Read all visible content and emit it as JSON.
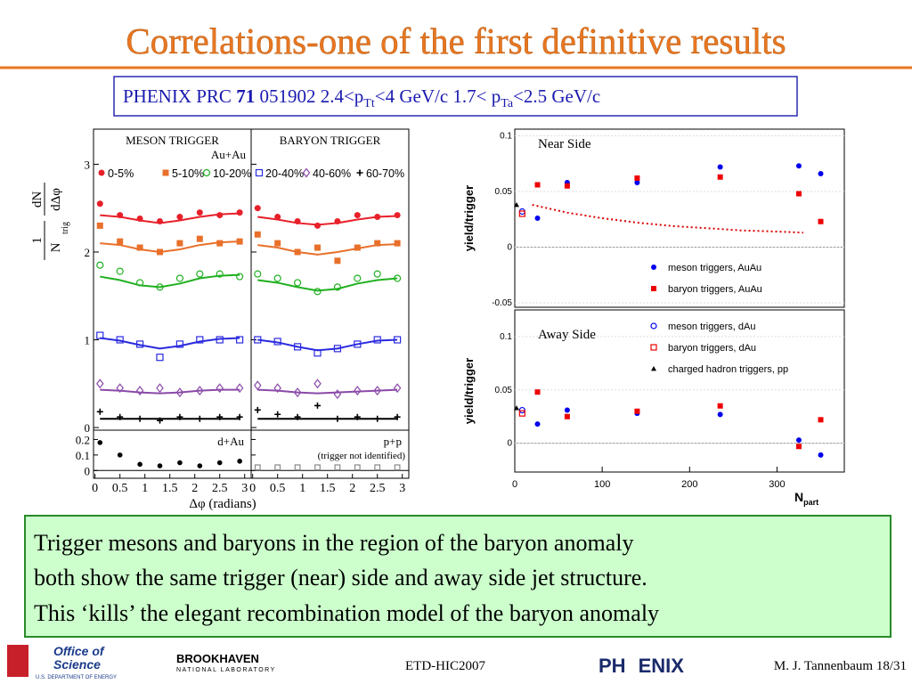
{
  "slide": {
    "title": "Correlations-one of the first definitive results",
    "citation": [
      "PHENIX PRC ",
      "71",
      " 051902  2.4<p",
      "Tt",
      "<4 GeV/c 1.7< p",
      "Ta",
      "<2.5 GeV/c"
    ],
    "body": [
      "Trigger mesons and baryons in the region of the baryon anomaly",
      "both show the same trigger (near) side and away side jet structure.",
      "This ‘kills’ the elegant recombination model of the baryon anomaly"
    ],
    "footer": {
      "logo1": [
        "Office of",
        "Science",
        "U.S. DEPARTMENT OF ENERGY"
      ],
      "logo2": [
        "BROOKHAVEN",
        "NATIONAL LABORATORY"
      ],
      "logo3": [
        "PH",
        "ENIX"
      ],
      "conference": "ETD-HIC2007",
      "author": "M. J. Tannenbaum  18/31"
    }
  },
  "chart_data": [
    {
      "type": "scatter",
      "y_label": [
        "1",
        "N",
        "trig",
        "dN",
        "dΔφ"
      ],
      "system": "Au+Au",
      "x": [
        0.1,
        0.5,
        0.9,
        1.3,
        1.7,
        2.1,
        2.5,
        2.9
      ],
      "xlim": [
        -0.03,
        3.13
      ],
      "ylim": [
        -0.03,
        3.4
      ],
      "yticks": [
        0,
        1,
        2,
        3
      ],
      "panels": [
        {
          "title": "MESON TRIGGER",
          "series": [
            {
              "name": "0-5%",
              "color": "#e8202a",
              "marker": "filled-circle",
              "values": [
                2.55,
                2.42,
                2.38,
                2.35,
                2.4,
                2.45,
                2.42,
                2.45
              ],
              "fit": [
                2.42,
                2.4,
                2.36,
                2.33,
                2.36,
                2.4,
                2.43,
                2.44
              ]
            },
            {
              "name": "5-10%",
              "color": "#e8702a",
              "marker": "filled-square",
              "values": [
                2.3,
                2.12,
                2.05,
                2.0,
                2.1,
                2.15,
                2.1,
                2.12
              ],
              "fit": [
                2.1,
                2.08,
                2.03,
                2.0,
                2.03,
                2.08,
                2.11,
                2.12
              ]
            },
            {
              "name": "10-20%",
              "color": "#20b020",
              "marker": "open-circle",
              "values": [
                1.85,
                1.78,
                1.65,
                1.6,
                1.7,
                1.75,
                1.75,
                1.72
              ],
              "fit": [
                1.72,
                1.68,
                1.62,
                1.6,
                1.64,
                1.7,
                1.73,
                1.74
              ]
            },
            {
              "name": "20-40%",
              "color": "#2a2ae0",
              "marker": "open-square",
              "values": [
                1.05,
                1.0,
                0.95,
                0.8,
                0.95,
                1.0,
                1.0,
                1.0
              ],
              "fit": [
                1.02,
                0.99,
                0.94,
                0.9,
                0.93,
                0.98,
                1.01,
                1.02
              ]
            },
            {
              "name": "40-60%",
              "color": "#8a4aa8",
              "marker": "open-diamond",
              "values": [
                0.5,
                0.45,
                0.42,
                0.45,
                0.4,
                0.42,
                0.45,
                0.45
              ],
              "fit": [
                0.43,
                0.42,
                0.4,
                0.39,
                0.4,
                0.42,
                0.43,
                0.43
              ]
            },
            {
              "name": "60-70%",
              "color": "#000000",
              "marker": "open-cross",
              "values": [
                0.18,
                0.12,
                0.1,
                0.08,
                0.12,
                0.1,
                0.12,
                0.12
              ],
              "fit": [
                0.1,
                0.1,
                0.1,
                0.1,
                0.1,
                0.1,
                0.1,
                0.1
              ]
            }
          ]
        },
        {
          "title": "BARYON TRIGGER",
          "series": [
            {
              "color": "#e8202a",
              "marker": "filled-circle",
              "values": [
                2.5,
                2.4,
                2.35,
                2.3,
                2.35,
                2.42,
                2.4,
                2.42
              ],
              "fit": [
                2.4,
                2.37,
                2.33,
                2.31,
                2.33,
                2.37,
                2.4,
                2.41
              ]
            },
            {
              "color": "#e8702a",
              "marker": "filled-square",
              "values": [
                2.2,
                2.1,
                2.0,
                2.05,
                1.9,
                2.05,
                2.1,
                2.1
              ],
              "fit": [
                2.08,
                2.05,
                2.0,
                1.97,
                2.0,
                2.04,
                2.08,
                2.09
              ]
            },
            {
              "color": "#20b020",
              "marker": "open-circle",
              "values": [
                1.75,
                1.7,
                1.65,
                1.55,
                1.6,
                1.7,
                1.75,
                1.7
              ],
              "fit": [
                1.68,
                1.65,
                1.6,
                1.56,
                1.58,
                1.64,
                1.68,
                1.7
              ]
            },
            {
              "color": "#2a2ae0",
              "marker": "open-square",
              "values": [
                1.0,
                0.98,
                0.92,
                0.85,
                0.9,
                0.95,
                1.0,
                1.0
              ],
              "fit": [
                1.0,
                0.97,
                0.92,
                0.88,
                0.9,
                0.95,
                0.99,
                1.0
              ]
            },
            {
              "color": "#8a4aa8",
              "marker": "open-diamond",
              "values": [
                0.48,
                0.45,
                0.4,
                0.5,
                0.38,
                0.42,
                0.42,
                0.45
              ],
              "fit": [
                0.43,
                0.42,
                0.4,
                0.39,
                0.4,
                0.41,
                0.42,
                0.43
              ]
            },
            {
              "color": "#000000",
              "marker": "open-cross",
              "values": [
                0.2,
                0.15,
                0.12,
                0.25,
                0.1,
                0.12,
                0.1,
                0.12
              ],
              "fit": [
                0.1,
                0.1,
                0.1,
                0.1,
                0.1,
                0.1,
                0.1,
                0.1
              ]
            }
          ]
        }
      ]
    },
    {
      "type": "scatter",
      "x": [
        0.1,
        0.5,
        0.9,
        1.3,
        1.7,
        2.1,
        2.5,
        2.9
      ],
      "xlim": [
        -0.03,
        3.13
      ],
      "ylim": [
        -0.05,
        0.26
      ],
      "yticks": [
        0,
        0.1,
        0.2
      ],
      "xticks": [
        0,
        0.5,
        1,
        1.5,
        2,
        2.5,
        3
      ],
      "x_label": "Δφ (radians)",
      "panels": [
        {
          "title": "d+Au",
          "color": "#000000",
          "marker": "filled-circle",
          "values": [
            0.18,
            0.1,
            0.04,
            0.03,
            0.05,
            0.03,
            0.05,
            0.06
          ]
        },
        {
          "title": "p+p",
          "note": "(trigger not identified)",
          "color": "#888888",
          "marker": "open-square",
          "values": [
            0.02,
            0.02,
            0.02,
            0.02,
            0.02,
            0.02,
            0.02,
            0.02
          ]
        }
      ]
    },
    {
      "type": "scatter",
      "title": "Near Side",
      "y_label": "yield/trigger",
      "xlim": [
        0,
        377
      ],
      "ylim": [
        -0.054,
        0.106
      ],
      "yticks": [
        -0.05,
        0,
        0.05,
        0.1
      ],
      "series": [
        {
          "name": "meson triggers, AuAu",
          "color": "#0000ee",
          "marker": "filled-circle",
          "x": [
            26,
            60,
            140,
            235,
            325,
            350
          ],
          "values": [
            0.026,
            0.058,
            0.058,
            0.072,
            0.073,
            0.066
          ]
        },
        {
          "name": "baryon triggers, AuAu",
          "color": "#ee0000",
          "marker": "filled-square",
          "x": [
            26,
            60,
            140,
            235,
            325,
            350
          ],
          "values": [
            0.056,
            0.055,
            0.062,
            0.063,
            0.048,
            0.023
          ]
        },
        {
          "color": "#0000ee",
          "marker": "open-circle",
          "x": [
            8.5
          ],
          "values": [
            0.032
          ]
        },
        {
          "color": "#ee0000",
          "marker": "open-square",
          "x": [
            8.5
          ],
          "values": [
            0.03
          ]
        },
        {
          "color": "#000000",
          "marker": "triangle",
          "x": [
            2
          ],
          "values": [
            0.038
          ]
        },
        {
          "color": "#dd0000",
          "marker": "dotted-line",
          "x": [
            20,
            60,
            100,
            140,
            180,
            220,
            260,
            300,
            330
          ],
          "values": [
            0.038,
            0.031,
            0.026,
            0.022,
            0.019,
            0.017,
            0.015,
            0.014,
            0.013
          ]
        }
      ]
    },
    {
      "type": "scatter",
      "title": "Away Side",
      "y_label": "yield/trigger",
      "x_label": [
        "N",
        "part"
      ],
      "xlim": [
        0,
        377
      ],
      "ylim": [
        -0.027,
        0.125
      ],
      "yticks": [
        0,
        0.05,
        0.1
      ],
      "xticks": [
        0,
        100,
        200,
        300
      ],
      "series": [
        {
          "color": "#0000ee",
          "marker": "filled-circle",
          "x": [
            26,
            60,
            140,
            235,
            325,
            350
          ],
          "values": [
            0.018,
            0.031,
            0.028,
            0.027,
            0.003,
            -0.011
          ]
        },
        {
          "color": "#ee0000",
          "marker": "filled-square",
          "x": [
            26,
            60,
            140,
            235,
            325,
            350
          ],
          "values": [
            0.048,
            0.025,
            0.03,
            0.035,
            -0.003,
            0.022
          ]
        },
        {
          "name": "meson triggers, dAu",
          "color": "#0000ee",
          "marker": "open-circle",
          "x": [
            8.5
          ],
          "values": [
            0.031
          ]
        },
        {
          "name": "baryon triggers, dAu",
          "color": "#ee0000",
          "marker": "open-square",
          "x": [
            8.5
          ],
          "values": [
            0.028
          ]
        },
        {
          "name": "charged hadron triggers, pp",
          "color": "#000000",
          "marker": "triangle",
          "x": [
            2
          ],
          "values": [
            0.033
          ]
        }
      ]
    }
  ]
}
